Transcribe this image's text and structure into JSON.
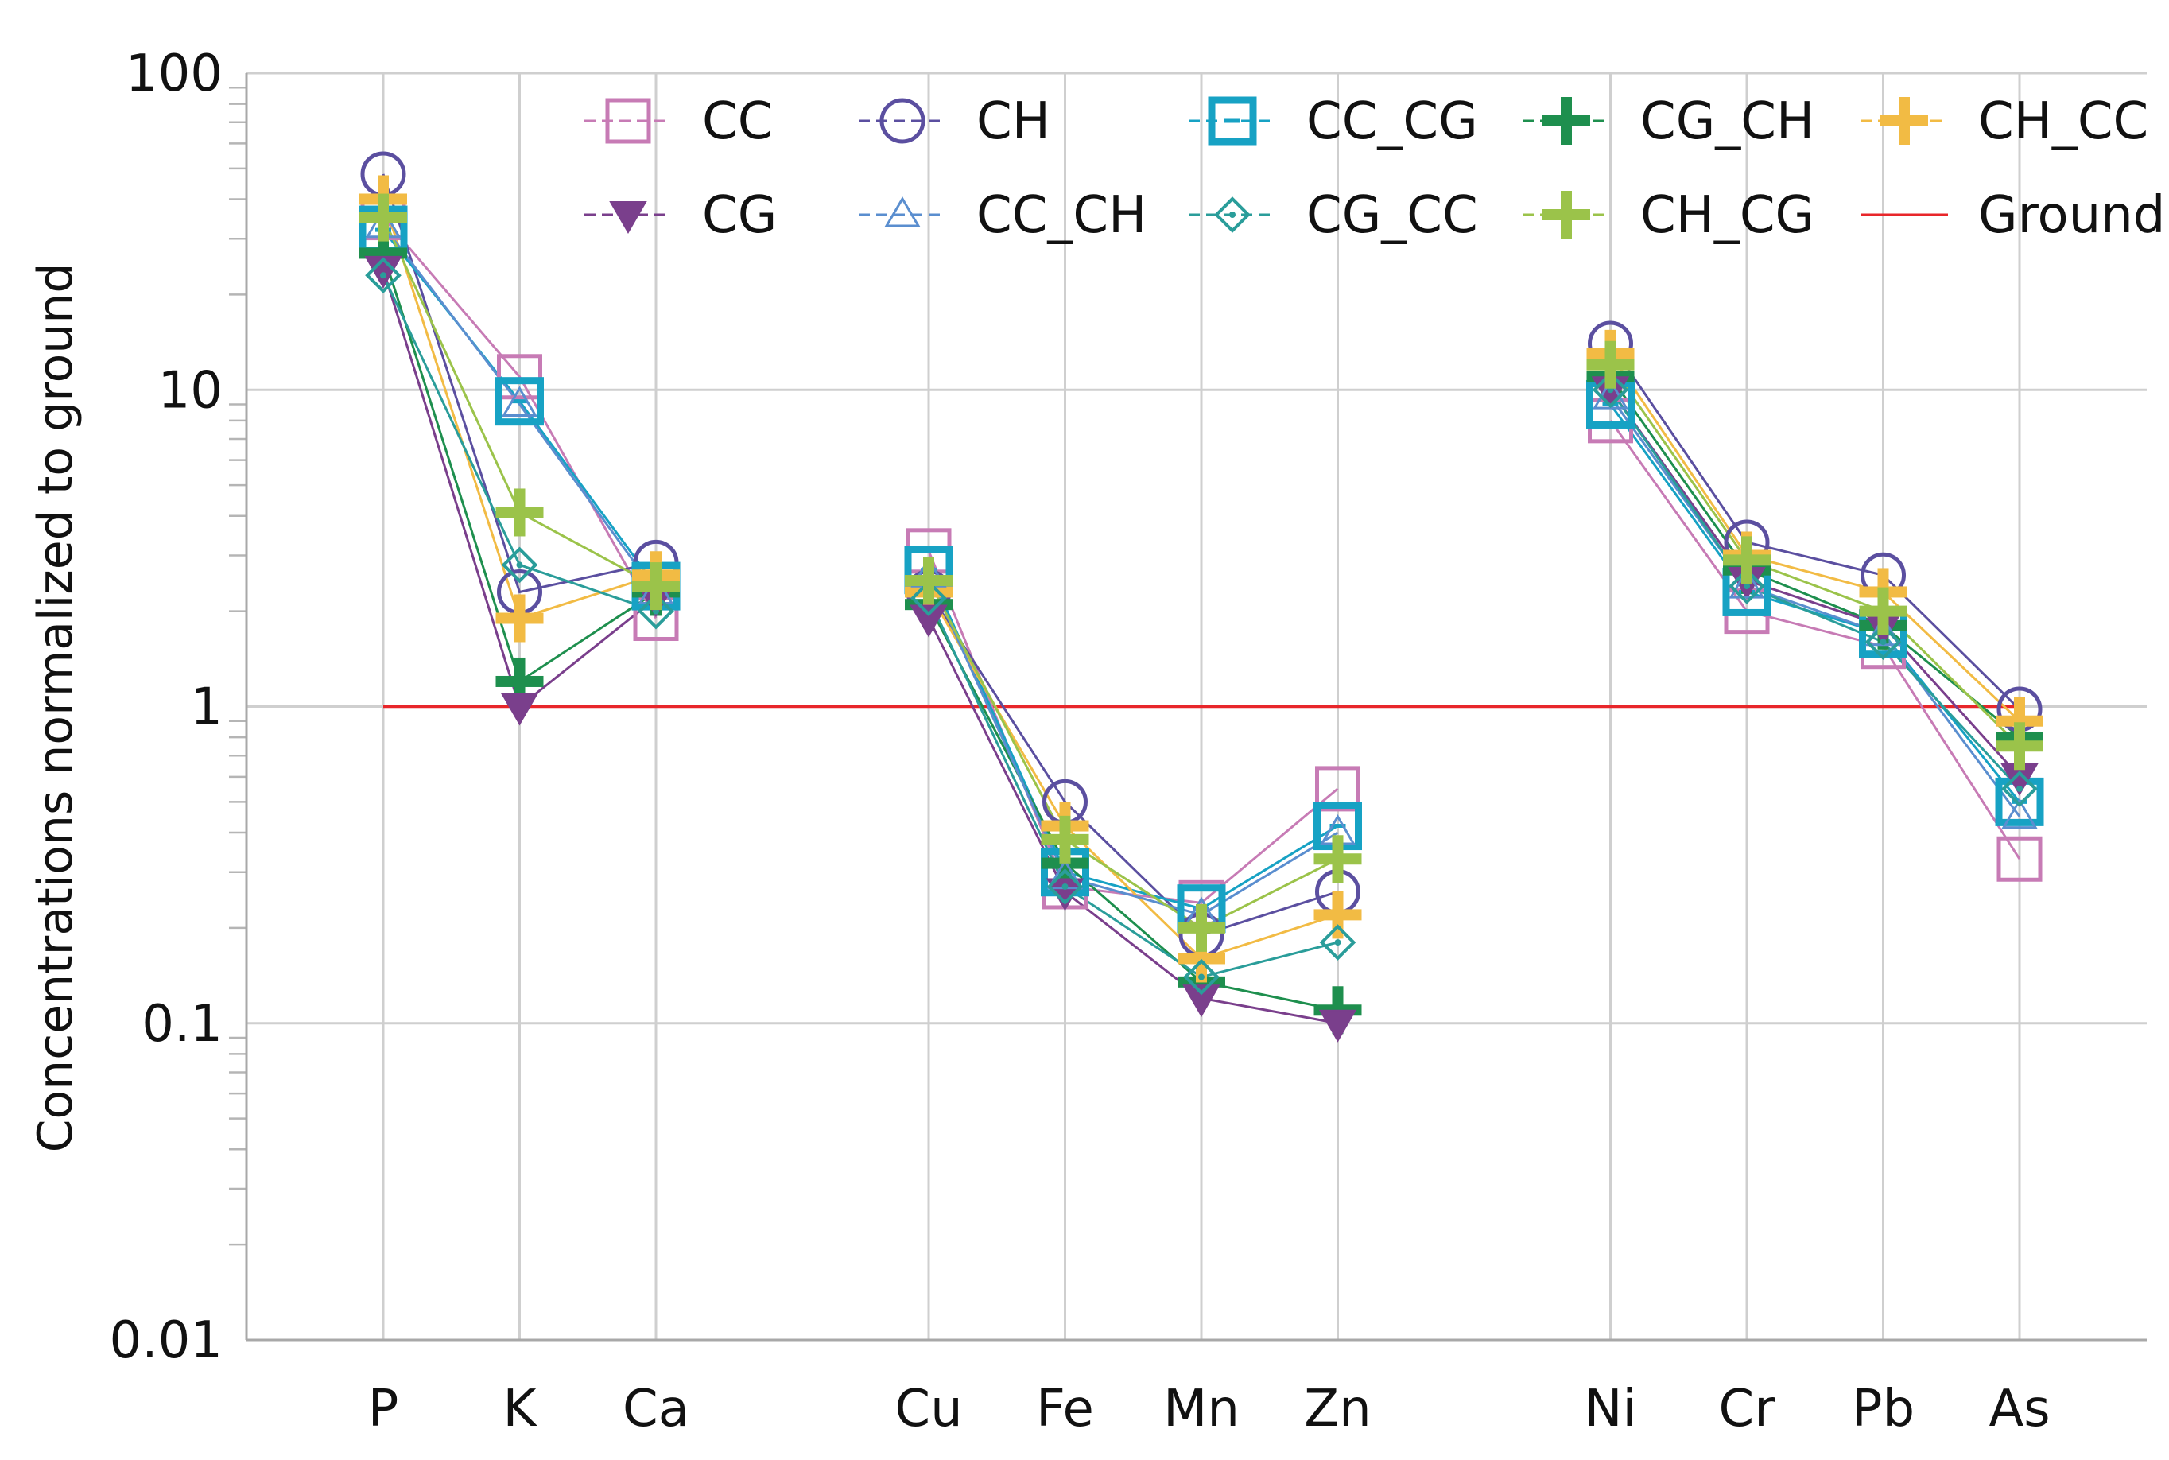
{
  "chart_data": {
    "type": "line",
    "title": "",
    "xlabel": "",
    "ylabel": "Concentrations normalized to ground",
    "yscale": "log",
    "ylim": [
      0.01,
      100
    ],
    "yticks": [
      "100",
      "10",
      "1",
      "0.1",
      "0.01"
    ],
    "categories": [
      "P",
      "K",
      "Ca",
      "",
      "Cu",
      "Fe",
      "Mn",
      "Zn",
      "",
      "Ni",
      "Cr",
      "Pb",
      "As"
    ],
    "grid": true,
    "legend_position": "top-right",
    "series": [
      {
        "name": "CC",
        "color": "#c77bb5",
        "marker": "square-open",
        "values": [
          35,
          11,
          1.9,
          null,
          3.1,
          0.27,
          0.24,
          0.55,
          null,
          8,
          2.0,
          1.55,
          0.33
        ]
      },
      {
        "name": "CH",
        "color": "#5b4fa0",
        "marker": "circle-open",
        "values": [
          48,
          2.3,
          2.85,
          null,
          2.3,
          0.5,
          0.19,
          0.26,
          null,
          14,
          3.3,
          2.6,
          0.98
        ]
      },
      {
        "name": "CC_CG",
        "color": "#17a2c4",
        "marker": "square-bold",
        "values": [
          32,
          9.2,
          2.4,
          null,
          2.7,
          0.3,
          0.23,
          0.42,
          null,
          9,
          2.3,
          1.7,
          0.5
        ]
      },
      {
        "name": "CG_CH",
        "color": "#1e8f4e",
        "marker": "plus",
        "values": [
          27,
          1.2,
          2.3,
          null,
          2.1,
          0.32,
          0.135,
          0.11,
          null,
          11,
          2.7,
          1.8,
          0.8
        ]
      },
      {
        "name": "CH_CC",
        "color": "#f2bb44",
        "marker": "plus",
        "values": [
          40,
          1.9,
          2.6,
          null,
          2.3,
          0.42,
          0.16,
          0.22,
          null,
          13,
          3.0,
          2.3,
          0.9
        ]
      },
      {
        "name": "CG",
        "color": "#7a3f8c",
        "marker": "triangle-down",
        "values": [
          24,
          1.0,
          2.2,
          null,
          1.9,
          0.26,
          0.12,
          0.1,
          null,
          10,
          2.5,
          1.8,
          0.6
        ]
      },
      {
        "name": "CC_CH",
        "color": "#5a8ecf",
        "marker": "triangle-open",
        "values": [
          33,
          9.0,
          2.3,
          null,
          2.6,
          0.29,
          0.22,
          0.4,
          null,
          9.5,
          2.4,
          1.7,
          0.45
        ]
      },
      {
        "name": "CG_CC",
        "color": "#2a9d9a",
        "marker": "diamond-open",
        "values": [
          23,
          2.8,
          2.0,
          null,
          2.2,
          0.27,
          0.14,
          0.18,
          null,
          10,
          2.4,
          1.6,
          0.55
        ]
      },
      {
        "name": "CH_CG",
        "color": "#9bc34a",
        "marker": "plus",
        "values": [
          35,
          4.1,
          2.4,
          null,
          2.5,
          0.38,
          0.2,
          0.33,
          null,
          12,
          2.9,
          2.0,
          0.75
        ]
      },
      {
        "name": "Ground",
        "color": "#e8262a",
        "marker": "line",
        "values": [
          1,
          1,
          1,
          null,
          1,
          1,
          1,
          1,
          null,
          1,
          1,
          1,
          1
        ]
      }
    ]
  }
}
